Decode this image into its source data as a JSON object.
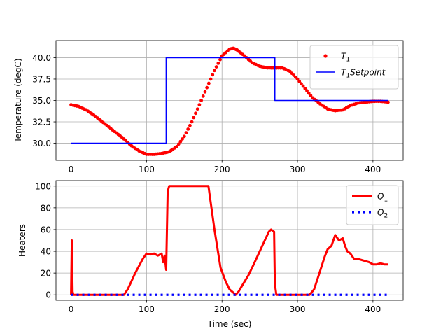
{
  "chart_data": [
    {
      "type": "line",
      "xlabel": "",
      "ylabel": "Temperature (degC)",
      "xlim": [
        -20,
        440
      ],
      "ylim": [
        28,
        42
      ],
      "xticks": [
        0,
        100,
        200,
        300,
        400
      ],
      "xtick_labels": [
        "0",
        "100",
        "200",
        "300",
        "400"
      ],
      "yticks": [
        30,
        32.5,
        35,
        37.5,
        40
      ],
      "ytick_labels": [
        "30.0",
        "32.5",
        "35.0",
        "37.5",
        "40.0"
      ],
      "grid": true,
      "legend_position": "top-right",
      "series": [
        {
          "name": "T1",
          "legend_base": "T",
          "legend_sub": "1",
          "legend_rest": "",
          "color": "#ff0000",
          "style": "dots",
          "x": [
            0,
            10,
            20,
            30,
            40,
            50,
            60,
            70,
            80,
            90,
            100,
            110,
            120,
            130,
            140,
            150,
            160,
            170,
            180,
            190,
            200,
            210,
            215,
            220,
            230,
            240,
            250,
            260,
            270,
            280,
            290,
            300,
            310,
            320,
            330,
            340,
            350,
            360,
            370,
            380,
            390,
            400,
            410,
            420
          ],
          "y": [
            34.5,
            34.3,
            33.9,
            33.3,
            32.6,
            31.9,
            31.2,
            30.5,
            29.7,
            29.1,
            28.7,
            28.7,
            28.8,
            29.0,
            29.6,
            30.8,
            32.5,
            34.5,
            36.5,
            38.5,
            40.2,
            41.0,
            41.1,
            40.9,
            40.2,
            39.4,
            39.0,
            38.8,
            38.8,
            38.8,
            38.4,
            37.5,
            36.4,
            35.3,
            34.6,
            34.0,
            33.8,
            33.9,
            34.4,
            34.7,
            34.8,
            34.9,
            34.9,
            34.8
          ]
        },
        {
          "name": "T1 Setpoint",
          "legend_base": "T",
          "legend_sub": "1",
          "legend_rest": "Setpoint",
          "color": "#0000ff",
          "style": "line",
          "x": [
            0,
            126,
            126,
            270,
            270,
            420
          ],
          "y": [
            30,
            30,
            40,
            40,
            35,
            35
          ]
        }
      ]
    },
    {
      "type": "line",
      "xlabel": "Time (sec)",
      "ylabel": "Heaters",
      "xlim": [
        -20,
        440
      ],
      "ylim": [
        -5,
        105
      ],
      "xticks": [
        0,
        100,
        200,
        300,
        400
      ],
      "xtick_labels": [
        "0",
        "100",
        "200",
        "300",
        "400"
      ],
      "yticks": [
        0,
        20,
        40,
        60,
        80,
        100
      ],
      "ytick_labels": [
        "0",
        "20",
        "40",
        "60",
        "80",
        "100"
      ],
      "grid": true,
      "legend_position": "top-right",
      "series": [
        {
          "name": "Q1",
          "legend_base": "Q",
          "legend_sub": "1",
          "legend_rest": "",
          "color": "#ff0000",
          "style": "thick",
          "x": [
            0,
            1,
            2,
            3,
            5,
            70,
            75,
            85,
            95,
            100,
            105,
            110,
            115,
            120,
            122,
            124,
            126,
            128,
            130,
            140,
            150,
            170,
            182,
            190,
            198,
            205,
            210,
            215,
            218,
            222,
            228,
            235,
            242,
            250,
            258,
            262,
            265,
            267,
            269,
            270,
            272,
            300,
            316,
            322,
            330,
            336,
            340,
            345,
            350,
            355,
            360,
            363,
            366,
            370,
            375,
            380,
            385,
            390,
            395,
            400,
            405,
            410,
            415,
            420
          ],
          "y": [
            0,
            50,
            3,
            0,
            0,
            0,
            5,
            20,
            33,
            38,
            37,
            38,
            36,
            38,
            30,
            36,
            23,
            95,
            100,
            100,
            100,
            100,
            100,
            60,
            25,
            12,
            5,
            2,
            0,
            3,
            10,
            18,
            28,
            40,
            52,
            58,
            60,
            59,
            58,
            10,
            0,
            0,
            0,
            5,
            22,
            35,
            42,
            45,
            55,
            50,
            52,
            45,
            40,
            38,
            33,
            33,
            32,
            31,
            30,
            28,
            28,
            29,
            28,
            28
          ]
        },
        {
          "name": "Q2",
          "legend_base": "Q",
          "legend_sub": "2",
          "legend_rest": "",
          "color": "#0000ff",
          "style": "dotted",
          "x": [
            0,
            420
          ],
          "y": [
            0,
            0
          ]
        }
      ]
    }
  ]
}
